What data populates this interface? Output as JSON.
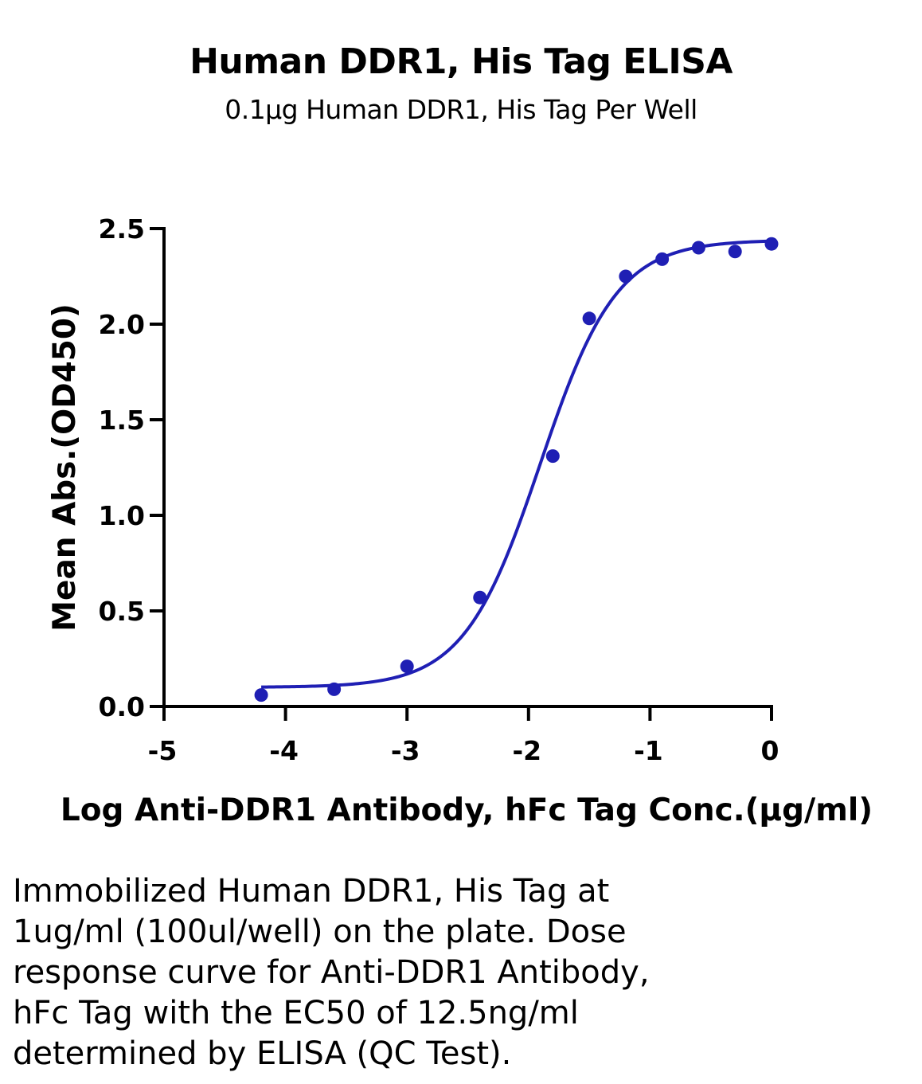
{
  "chart_data": {
    "type": "scatter",
    "title": "Human DDR1, His Tag ELISA",
    "subtitle": "0.1μg Human DDR1, His Tag Per Well",
    "xlabel": "Log Anti-DDR1 Antibody, hFc Tag Conc.(μg/ml)",
    "ylabel": "Mean Abs.(OD450)",
    "xlim": [
      -5,
      0
    ],
    "ylim": [
      0,
      2.5
    ],
    "x_ticks": [
      -5,
      -4,
      -3,
      -2,
      -1,
      0
    ],
    "x_tick_labels": [
      "-5",
      "-4",
      "-3",
      "-2",
      "-1",
      "0"
    ],
    "y_ticks": [
      0,
      0.5,
      1.0,
      1.5,
      2.0,
      2.5
    ],
    "y_tick_labels": [
      "0.0",
      "0.5",
      "1.0",
      "1.5",
      "2.0",
      "2.5"
    ],
    "grid": false,
    "series": [
      {
        "x": [
          -4.2,
          -3.6,
          -3.0,
          -2.4,
          -1.8,
          -1.5,
          -1.2,
          -0.9,
          -0.6,
          -0.3,
          0.0
        ],
        "y": [
          0.06,
          0.09,
          0.21,
          0.57,
          1.31,
          2.03,
          2.25,
          2.34,
          2.4,
          2.38,
          2.42
        ],
        "color": "#1f1fb4"
      }
    ],
    "fit_curve": {
      "model": "4PL",
      "bottom": 0.1,
      "top": 2.44,
      "log_ec50": -1.903,
      "hill": 1.38,
      "x_range": [
        -4.2,
        0.0
      ],
      "color": "#1f1fb4"
    }
  },
  "caption": {
    "lines": [
      "Immobilized Human DDR1, His Tag at",
      "1ug/ml (100ul/well) on the plate. Dose",
      "response curve for Anti-DDR1 Antibody,",
      "hFc Tag with the EC50 of 12.5ng/ml",
      "determined by ELISA (QC Test)."
    ]
  }
}
